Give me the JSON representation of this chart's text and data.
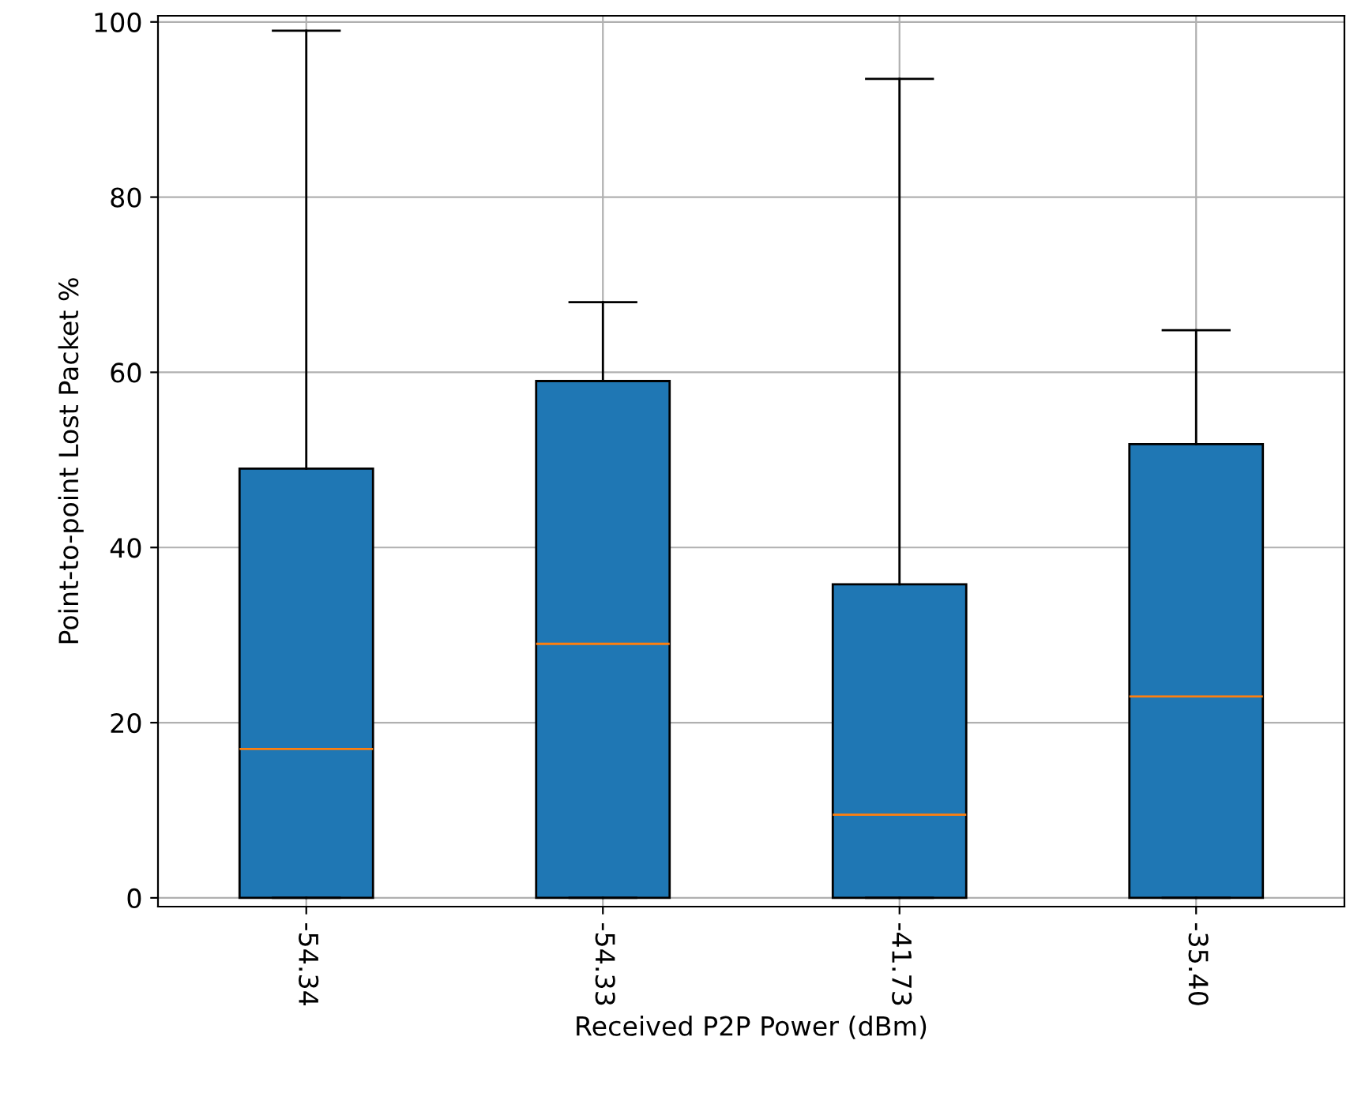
{
  "chart_data": {
    "type": "box",
    "xlabel": "Received P2P Power (dBm)",
    "ylabel": "Point-to-point Lost Packet %",
    "categories": [
      "-54.34",
      "-54.33",
      "-41.73",
      "-35.40"
    ],
    "boxes": [
      {
        "low": 0,
        "q1": 0,
        "median": 17,
        "q3": 49,
        "high": 99
      },
      {
        "low": 0,
        "q1": 0,
        "median": 29,
        "q3": 59,
        "high": 68
      },
      {
        "low": 0,
        "q1": 0,
        "median": 9.5,
        "q3": 35.8,
        "high": 93.5
      },
      {
        "low": 0,
        "q1": 0,
        "median": 23,
        "q3": 51.8,
        "high": 64.8
      }
    ],
    "color": "#1f77b4",
    "ylim": [
      -1,
      100.7
    ],
    "yticks": [
      0,
      20,
      40,
      60,
      80,
      100
    ],
    "grid": true
  }
}
